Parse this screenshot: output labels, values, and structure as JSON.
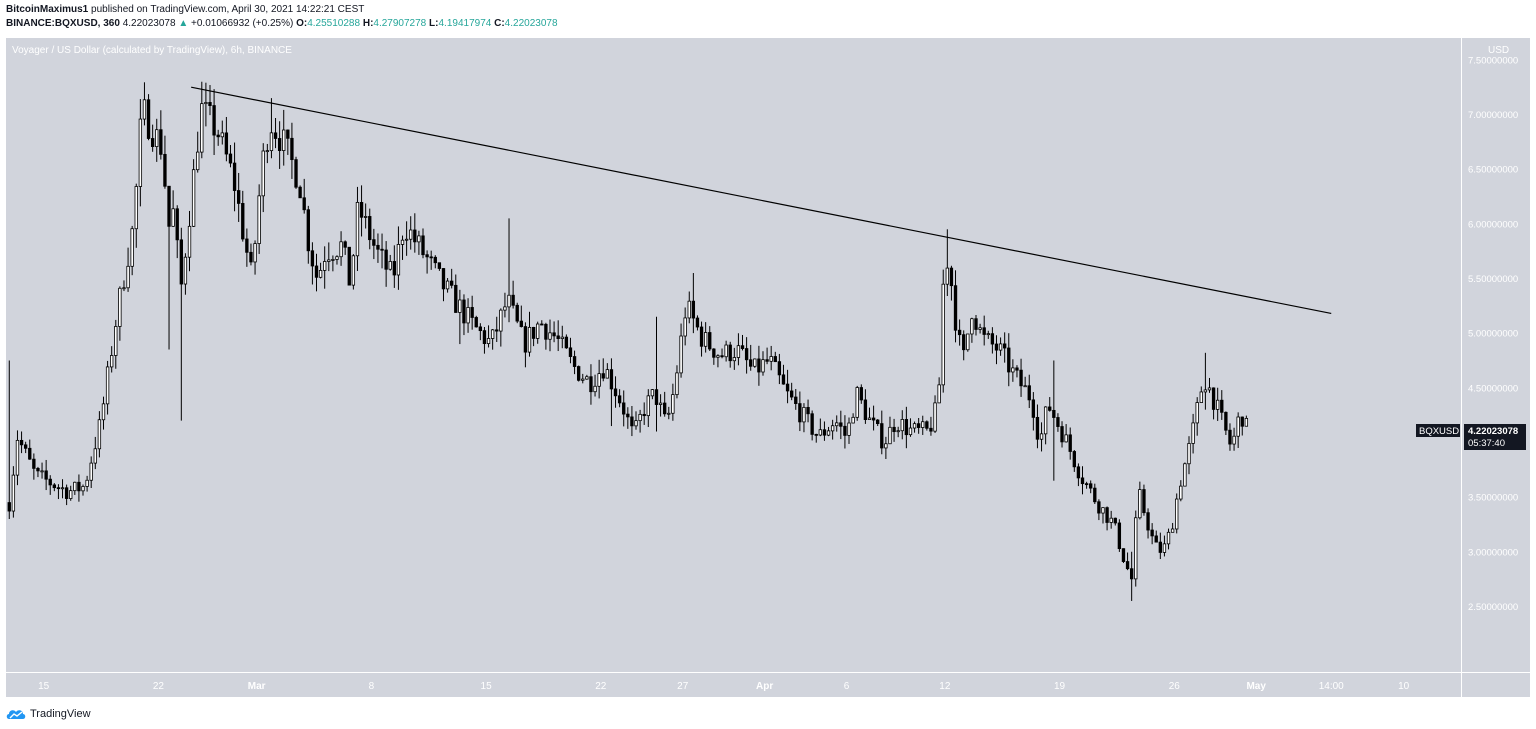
{
  "header": {
    "author": "BitcoinMaximus1",
    "published_text": "published on TradingView.com, April 30, 2021 14:22:21 CEST",
    "symbol_line": "BINANCE:BQXUSD, 360",
    "last": "4.22023078",
    "change": "+0.01066932 (+0.25%)",
    "o_label": "O:",
    "o": "4.25510288",
    "h_label": "H:",
    "h": "4.27907278",
    "l_label": "L:",
    "l": "4.19417974",
    "c_label": "C:",
    "c": "4.22023078"
  },
  "footer": {
    "brand": "TradingView"
  },
  "colors": {
    "plot_bg": "#d1d4dc",
    "candle": "#000000",
    "trendline": "#000000",
    "axis_bg": "#d1d4dc",
    "badge_bg": "#131722"
  },
  "chart_data": {
    "type": "candlestick",
    "title": "Voyager / US Dollar (calculated by TradingView), 6h, BINANCE",
    "currency_label": "USD",
    "price_badge": {
      "symbol": "BQXUSD",
      "value": "4.22023078",
      "countdown": "05:37:40"
    },
    "ylim": [
      1.9,
      7.7
    ],
    "y_ticks": [
      {
        "v": 7.5,
        "label": "7.50000000"
      },
      {
        "v": 7.0,
        "label": "7.00000000"
      },
      {
        "v": 6.5,
        "label": "6.50000000"
      },
      {
        "v": 6.0,
        "label": "6.00000000"
      },
      {
        "v": 5.5,
        "label": "5.50000000"
      },
      {
        "v": 5.0,
        "label": "5.00000000"
      },
      {
        "v": 4.5,
        "label": "4.50000000"
      },
      {
        "v": 4.0,
        "label": "4.00000000"
      },
      {
        "v": 3.5,
        "label": "3.50000000"
      },
      {
        "v": 3.0,
        "label": "3.00000000"
      },
      {
        "v": 2.5,
        "label": "2.50000000"
      }
    ],
    "x_ticks": [
      {
        "day": 15,
        "label": "15",
        "bold": false
      },
      {
        "day": 22,
        "label": "22",
        "bold": false
      },
      {
        "day": 28,
        "label": "Mar",
        "bold": true
      },
      {
        "day": 35,
        "label": "8",
        "bold": false
      },
      {
        "day": 42,
        "label": "15",
        "bold": false
      },
      {
        "day": 49,
        "label": "22",
        "bold": false
      },
      {
        "day": 54,
        "label": "27",
        "bold": false
      },
      {
        "day": 59,
        "label": "Apr",
        "bold": true
      },
      {
        "day": 64,
        "label": "6",
        "bold": false
      },
      {
        "day": 70,
        "label": "12",
        "bold": false
      },
      {
        "day": 77,
        "label": "19",
        "bold": false
      },
      {
        "day": 84,
        "label": "26",
        "bold": false
      },
      {
        "day": 89,
        "label": "May",
        "bold": true
      },
      {
        "day": 93.58,
        "label": "14:00",
        "bold": false
      },
      {
        "day": 98,
        "label": "10",
        "bold": false
      }
    ],
    "xlim_days": [
      12.7,
      101.5
    ],
    "anchors": [
      {
        "day": 12.9,
        "p": 3.45
      },
      {
        "day": 13.4,
        "p": 4.05
      },
      {
        "day": 14.5,
        "p": 3.7
      },
      {
        "day": 16.5,
        "p": 3.55
      },
      {
        "day": 17.5,
        "p": 3.6
      },
      {
        "day": 18.5,
        "p": 4.2
      },
      {
        "day": 19.5,
        "p": 5.2
      },
      {
        "day": 20.5,
        "p": 6.0
      },
      {
        "day": 21.0,
        "p": 7.05
      },
      {
        "day": 22.2,
        "p": 6.7
      },
      {
        "day": 22.7,
        "p": 5.9
      },
      {
        "day": 23.0,
        "p": 6.2
      },
      {
        "day": 23.3,
        "p": 5.3
      },
      {
        "day": 24.2,
        "p": 6.5
      },
      {
        "day": 24.6,
        "p": 7.05
      },
      {
        "day": 25.6,
        "p": 6.85
      },
      {
        "day": 26.6,
        "p": 6.4
      },
      {
        "day": 27.2,
        "p": 5.9
      },
      {
        "day": 27.7,
        "p": 5.5
      },
      {
        "day": 28.3,
        "p": 6.5
      },
      {
        "day": 28.8,
        "p": 6.95
      },
      {
        "day": 29.6,
        "p": 6.75
      },
      {
        "day": 30.6,
        "p": 6.4
      },
      {
        "day": 31.2,
        "p": 5.8
      },
      {
        "day": 31.7,
        "p": 5.5
      },
      {
        "day": 32.2,
        "p": 5.75
      },
      {
        "day": 33.2,
        "p": 5.8
      },
      {
        "day": 33.7,
        "p": 5.45
      },
      {
        "day": 34.2,
        "p": 6.15
      },
      {
        "day": 35.3,
        "p": 5.75
      },
      {
        "day": 36.3,
        "p": 5.5
      },
      {
        "day": 37.0,
        "p": 6.0
      },
      {
        "day": 38.3,
        "p": 5.7
      },
      {
        "day": 39.3,
        "p": 5.45
      },
      {
        "day": 40.3,
        "p": 5.25
      },
      {
        "day": 41.3,
        "p": 5.05
      },
      {
        "day": 42.3,
        "p": 4.9
      },
      {
        "day": 43.3,
        "p": 5.3
      },
      {
        "day": 44.3,
        "p": 4.9
      },
      {
        "day": 45.3,
        "p": 5.1
      },
      {
        "day": 46.3,
        "p": 4.95
      },
      {
        "day": 47.3,
        "p": 4.7
      },
      {
        "day": 48.3,
        "p": 4.55
      },
      {
        "day": 49.2,
        "p": 4.7
      },
      {
        "day": 50.3,
        "p": 4.35
      },
      {
        "day": 51.0,
        "p": 4.05
      },
      {
        "day": 51.6,
        "p": 4.3
      },
      {
        "day": 52.3,
        "p": 4.45
      },
      {
        "day": 53.0,
        "p": 4.15
      },
      {
        "day": 53.5,
        "p": 4.5
      },
      {
        "day": 54.2,
        "p": 5.25
      },
      {
        "day": 55.2,
        "p": 4.95
      },
      {
        "day": 56.3,
        "p": 4.8
      },
      {
        "day": 57.3,
        "p": 4.85
      },
      {
        "day": 58.3,
        "p": 4.65
      },
      {
        "day": 59.3,
        "p": 4.75
      },
      {
        "day": 60.3,
        "p": 4.45
      },
      {
        "day": 61.3,
        "p": 4.25
      },
      {
        "day": 62.3,
        "p": 4.05
      },
      {
        "day": 63.3,
        "p": 4.2
      },
      {
        "day": 64.0,
        "p": 4.05
      },
      {
        "day": 64.6,
        "p": 4.45
      },
      {
        "day": 65.4,
        "p": 4.2
      },
      {
        "day": 66.3,
        "p": 4.0
      },
      {
        "day": 67.0,
        "p": 4.2
      },
      {
        "day": 68.0,
        "p": 4.1
      },
      {
        "day": 69.0,
        "p": 4.1
      },
      {
        "day": 69.6,
        "p": 4.35
      },
      {
        "day": 70.0,
        "p": 5.8
      },
      {
        "day": 70.4,
        "p": 5.45
      },
      {
        "day": 70.8,
        "p": 4.95
      },
      {
        "day": 71.2,
        "p": 4.75
      },
      {
        "day": 71.6,
        "p": 5.25
      },
      {
        "day": 72.3,
        "p": 4.95
      },
      {
        "day": 73.3,
        "p": 4.85
      },
      {
        "day": 74.3,
        "p": 4.6
      },
      {
        "day": 75.3,
        "p": 4.4
      },
      {
        "day": 75.8,
        "p": 4.0
      },
      {
        "day": 76.3,
        "p": 4.35
      },
      {
        "day": 77.3,
        "p": 4.05
      },
      {
        "day": 78.3,
        "p": 3.7
      },
      {
        "day": 79.3,
        "p": 3.45
      },
      {
        "day": 80.3,
        "p": 3.25
      },
      {
        "day": 81.0,
        "p": 2.9
      },
      {
        "day": 81.4,
        "p": 2.75
      },
      {
        "day": 81.8,
        "p": 3.55
      },
      {
        "day": 82.3,
        "p": 3.3
      },
      {
        "day": 82.8,
        "p": 3.05
      },
      {
        "day": 83.3,
        "p": 3.0
      },
      {
        "day": 83.8,
        "p": 3.2
      },
      {
        "day": 84.3,
        "p": 3.6
      },
      {
        "day": 85.0,
        "p": 4.0
      },
      {
        "day": 85.8,
        "p": 4.6
      },
      {
        "day": 86.4,
        "p": 4.4
      },
      {
        "day": 87.0,
        "p": 4.15
      },
      {
        "day": 87.5,
        "p": 3.95
      },
      {
        "day": 88.0,
        "p": 4.25
      },
      {
        "day": 88.5,
        "p": 4.22
      }
    ],
    "spikes": [
      {
        "day": 13.0,
        "h": 4.75,
        "l": 3.3
      },
      {
        "day": 23.4,
        "h": 5.5,
        "l": 4.2
      },
      {
        "day": 22.7,
        "h": 6.3,
        "l": 4.85
      },
      {
        "day": 24.6,
        "h": 7.3,
        "l": 6.6
      },
      {
        "day": 28.8,
        "h": 7.15,
        "l": 6.6
      },
      {
        "day": 40.5,
        "h": 5.3,
        "l": 4.9
      },
      {
        "day": 43.3,
        "h": 6.05,
        "l": 5.1
      },
      {
        "day": 52.3,
        "h": 5.15,
        "l": 4.1
      },
      {
        "day": 49.6,
        "h": 4.3,
        "l": 4.15
      },
      {
        "day": 54.7,
        "h": 5.55,
        "l": 5.0
      },
      {
        "day": 70.1,
        "h": 5.95,
        "l": 5.4
      },
      {
        "day": 76.7,
        "h": 4.75,
        "l": 3.65
      },
      {
        "day": 81.4,
        "h": 3.0,
        "l": 2.55
      },
      {
        "day": 85.9,
        "h": 4.82,
        "l": 4.3
      }
    ],
    "trendline": {
      "p1": {
        "day": 24.0,
        "p": 7.25
      },
      "p2": {
        "day": 93.58,
        "p": 5.18
      }
    }
  }
}
